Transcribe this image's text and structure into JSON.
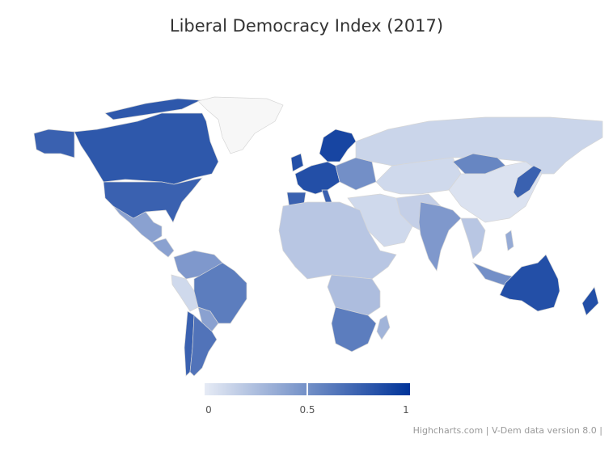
{
  "title": "Liberal Democracy Index (2017)",
  "credits": "Highcharts.com | V-Dem data version 8.0 |",
  "colors": {
    "min": "#e6ebf5",
    "max": "#003399",
    "null": "#f7f7f7"
  },
  "chart_data": {
    "type": "map",
    "title": "Liberal Democracy Index (2017)",
    "color_axis": {
      "min": 0,
      "max": 1,
      "ticks": [
        "0",
        "0.5",
        "1"
      ]
    },
    "regions": [
      {
        "name": "Alaska (USA)",
        "value": 0.75
      },
      {
        "name": "Canada",
        "value": 0.8
      },
      {
        "name": "Canadian Arctic",
        "value": 0.8
      },
      {
        "name": "USA",
        "value": 0.75
      },
      {
        "name": "Mexico",
        "value": 0.4
      },
      {
        "name": "Central America",
        "value": 0.4
      },
      {
        "name": "Greenland",
        "value": null
      },
      {
        "name": "Colombia/Venezuela",
        "value": 0.45
      },
      {
        "name": "Peru/Ecuador",
        "value": 0.1
      },
      {
        "name": "Brazil",
        "value": 0.6
      },
      {
        "name": "Bolivia/Paraguay",
        "value": 0.4
      },
      {
        "name": "Chile",
        "value": 0.75
      },
      {
        "name": "Argentina",
        "value": 0.65
      },
      {
        "name": "United Kingdom",
        "value": 0.85
      },
      {
        "name": "Western Europe",
        "value": 0.85
      },
      {
        "name": "Spain",
        "value": 0.75
      },
      {
        "name": "Italy",
        "value": 0.75
      },
      {
        "name": "Scandinavia",
        "value": 0.9
      },
      {
        "name": "Eastern Europe",
        "value": 0.5
      },
      {
        "name": "Russia",
        "value": 0.12
      },
      {
        "name": "Central Asia",
        "value": 0.1
      },
      {
        "name": "Mongolia",
        "value": 0.55
      },
      {
        "name": "China",
        "value": 0.05
      },
      {
        "name": "Middle East",
        "value": 0.1
      },
      {
        "name": "Iran/Pakistan",
        "value": 0.15
      },
      {
        "name": "India",
        "value": 0.45
      },
      {
        "name": "Southeast Asia",
        "value": 0.2
      },
      {
        "name": "Japan",
        "value": 0.75
      },
      {
        "name": "Indonesia",
        "value": 0.5
      },
      {
        "name": "Philippines",
        "value": 0.35
      },
      {
        "name": "North Africa",
        "value": 0.2
      },
      {
        "name": "Central Africa",
        "value": 0.25
      },
      {
        "name": "Southern Africa",
        "value": 0.6
      },
      {
        "name": "Madagascar",
        "value": 0.3
      },
      {
        "name": "Australia",
        "value": 0.85
      },
      {
        "name": "New Zealand",
        "value": 0.85
      }
    ]
  }
}
